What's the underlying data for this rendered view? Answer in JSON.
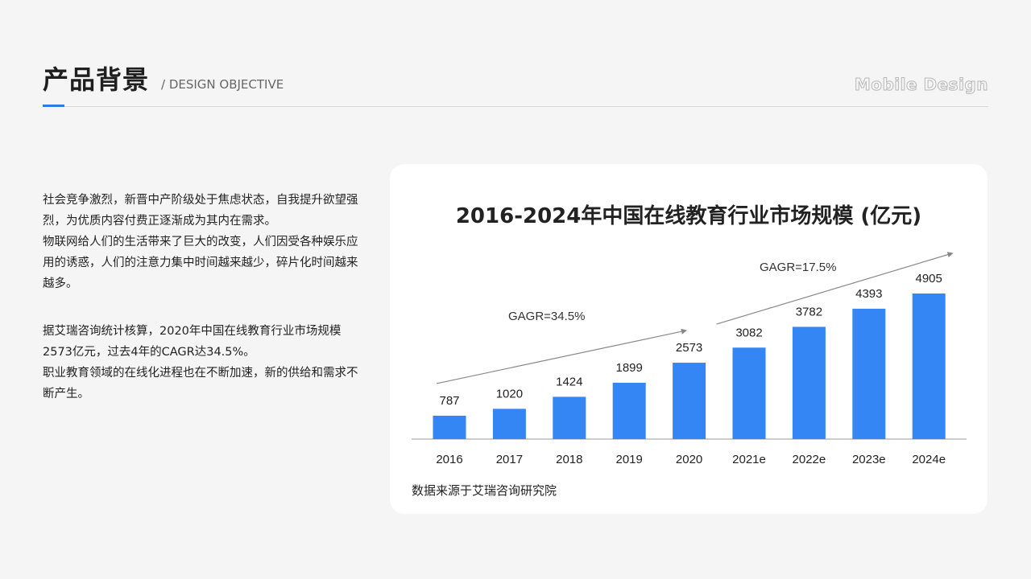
{
  "header": {
    "title": "产品背景",
    "subtitle": "/ DESIGN OBJECTIVE",
    "brand": "Mobile Design"
  },
  "intro": {
    "paragraph1": [
      "社会竞争激烈，新晋中产阶级处于焦虑状态，自我提升欲望强烈，为优质内容付费正逐渐成为其内在需求。",
      "物联网给人们的生活带来了巨大的改变，人们因受各种娱乐应用的诱惑，人们的注意力集中时间越来越少，碎片化时间越来越多。"
    ],
    "paragraph2": [
      "据艾瑞咨询统计核算，2020年中国在线教育行业市场规模2573亿元，过去4年的CAGR达34.5%。",
      "职业教育领域的在线化进程也在不断加速，新的供给和需求不断产生。"
    ]
  },
  "chart_data": {
    "type": "bar",
    "title": "2016-2024年中国在线教育行业市场规模 (亿元)",
    "categories": [
      "2016",
      "2017",
      "2018",
      "2019",
      "2020",
      "2021e",
      "2022e",
      "2023e",
      "2024e"
    ],
    "values": [
      787,
      1020,
      1424,
      1899,
      2573,
      3082,
      3782,
      4393,
      4905
    ],
    "ylim": [
      0,
      4905
    ],
    "bar_color": "#3486f4",
    "annotations": [
      {
        "text": "GAGR=34.5%",
        "from": "2016",
        "to": "2020"
      },
      {
        "text": "GAGR=17.5%",
        "from": "2020",
        "to": "2024e"
      }
    ],
    "source": "数据来源于艾瑞咨询研究院"
  }
}
